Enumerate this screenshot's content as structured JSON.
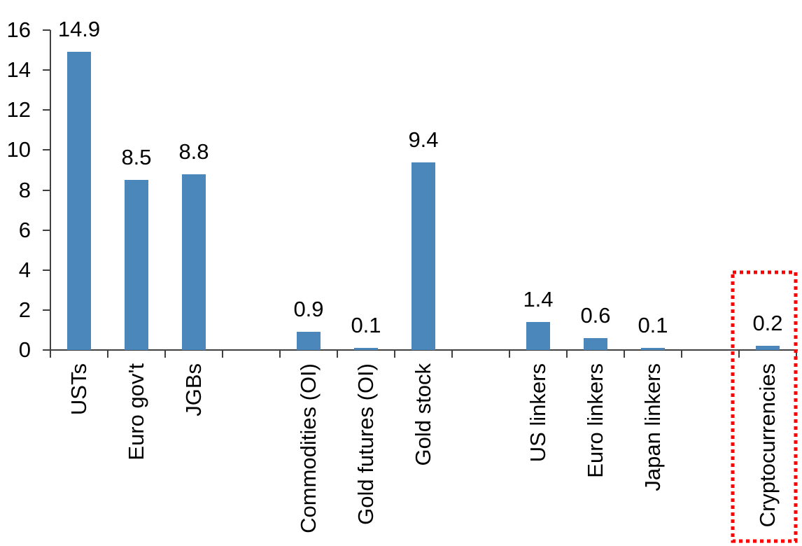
{
  "chart_data": {
    "type": "bar",
    "title": "",
    "xlabel": "",
    "ylabel": "",
    "categories": [
      "USTs",
      "Euro gov't",
      "JGBs",
      "Commodities (OI)",
      "Gold futures (OI)",
      "Gold stock",
      "US linkers",
      "Euro linkers",
      "Japan linkers",
      "Cryptocurrencies"
    ],
    "values": [
      14.9,
      8.5,
      8.8,
      0.9,
      0.1,
      9.4,
      1.4,
      0.6,
      0.1,
      0.2
    ],
    "yticks": [
      0,
      2,
      4,
      6,
      8,
      10,
      12,
      14,
      16
    ],
    "ylim": [
      0,
      16
    ],
    "grid": "off",
    "legend": "none",
    "bar_color": "#4C87BC",
    "axis_color": "#404040",
    "text_color": "#000000",
    "slot_positions": [
      1,
      2,
      3,
      5,
      6,
      7,
      9,
      10,
      11,
      13
    ],
    "total_slots": 13,
    "highlight": {
      "category": "Cryptocurrencies",
      "style": "red-dotted-box",
      "color": "#FF0000"
    }
  }
}
